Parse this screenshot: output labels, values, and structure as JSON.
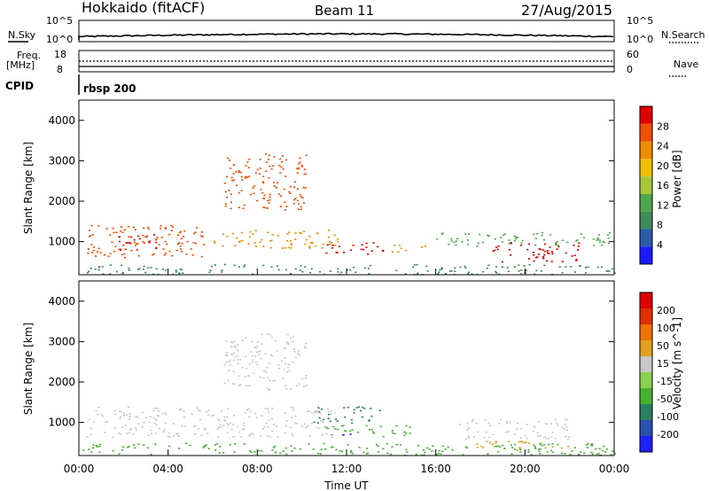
{
  "header": {
    "station": "Hokkaido (fitACF)",
    "beam": "Beam 11",
    "date": "27/Aug/2015"
  },
  "top_panels": {
    "nsky_label": "N.Sky",
    "nsky_ticks": [
      "10^5",
      "10^0"
    ],
    "nsearch_label": "N.Search",
    "nsearch_ticks": [
      "10^5",
      "10^0"
    ],
    "freq_label_line1": "Freq.",
    "freq_label_line2": "[MHz]",
    "freq_ticks": [
      "18",
      "8"
    ],
    "nave_label": "Nave",
    "nave_ticks": [
      "60",
      "0"
    ],
    "cpid_label": "CPID",
    "cpid_value": "rbsp 200"
  },
  "x_axis": {
    "label": "Time UT",
    "ticks": [
      "00:00",
      "04:00",
      "08:00",
      "12:00",
      "16:00",
      "20:00",
      "00:00"
    ]
  },
  "colors": {
    "power_scale": [
      "#1a1aff",
      "#2a5aa8",
      "#3f8c5a",
      "#4fa84f",
      "#a8c83c",
      "#f0c000",
      "#f08c00",
      "#f05000",
      "#e00000"
    ],
    "velocity_scale": [
      "#2020ff",
      "#2850b0",
      "#2a8060",
      "#46b030",
      "#8cd050",
      "#c8c8c8",
      "#e0a020",
      "#f07000",
      "#e03000",
      "#e00000"
    ]
  },
  "chart_data": [
    {
      "type": "heatmap",
      "title": "",
      "xlabel": "Time UT",
      "ylabel": "Slant Range [km]",
      "xlim": [
        0,
        24
      ],
      "ylim": [
        180,
        4500
      ],
      "yticks": [
        "1000",
        "2000",
        "3000",
        "4000"
      ],
      "colorbar": {
        "label": "Power [dB]",
        "ticks": [
          "4",
          "8",
          "12",
          "16",
          "20",
          "24",
          "28"
        ],
        "range": [
          0,
          30
        ]
      },
      "regions": [
        {
          "t0": 0.3,
          "t1": 5.6,
          "r0": 620,
          "r1": 1420,
          "color": "#f05000"
        },
        {
          "t0": 1.5,
          "t1": 3.5,
          "r0": 800,
          "r1": 1200,
          "color": "#e00000"
        },
        {
          "t0": 6.0,
          "t1": 11.8,
          "r0": 850,
          "r1": 1300,
          "color": "#f08c00"
        },
        {
          "t0": 6.5,
          "t1": 10.2,
          "r0": 1800,
          "r1": 3200,
          "color": "#f05000"
        },
        {
          "t0": 11.0,
          "t1": 13.8,
          "r0": 700,
          "r1": 1000,
          "color": "#e00000"
        },
        {
          "t0": 14.0,
          "t1": 15.5,
          "r0": 750,
          "r1": 950,
          "color": "#f08c00"
        },
        {
          "t0": 18.5,
          "t1": 22.5,
          "r0": 500,
          "r1": 1000,
          "color": "#e00000"
        },
        {
          "t0": 16.0,
          "t1": 24.0,
          "r0": 900,
          "r1": 1250,
          "color": "#4fa84f"
        },
        {
          "t0": 0.0,
          "t1": 24.0,
          "r0": 200,
          "r1": 450,
          "color": "#3f8c5a"
        }
      ]
    },
    {
      "type": "heatmap",
      "title": "",
      "xlabel": "Time UT",
      "ylabel": "Slant Range [km]",
      "xlim": [
        0,
        24
      ],
      "ylim": [
        180,
        4500
      ],
      "yticks": [
        "1000",
        "2000",
        "3000",
        "4000"
      ],
      "colorbar": {
        "label": "Velocity [m s^-1]",
        "ticks": [
          "200",
          "100",
          "50",
          "15",
          "-15",
          "-50",
          "-100",
          "-200"
        ],
        "range": [
          -250,
          250
        ]
      },
      "regions": [
        {
          "t0": 0.3,
          "t1": 11.5,
          "r0": 650,
          "r1": 1400,
          "color": "#c8c8c8"
        },
        {
          "t0": 6.5,
          "t1": 10.2,
          "r0": 1800,
          "r1": 3200,
          "color": "#c8c8c8"
        },
        {
          "t0": 10.5,
          "t1": 13.5,
          "r0": 1000,
          "r1": 1400,
          "color": "#2a8060"
        },
        {
          "t0": 11.0,
          "t1": 15.0,
          "r0": 650,
          "r1": 950,
          "color": "#46b030"
        },
        {
          "t0": 11.6,
          "t1": 12.2,
          "r0": 700,
          "r1": 900,
          "color": "#2020ff"
        },
        {
          "t0": 17.0,
          "t1": 22.0,
          "r0": 600,
          "r1": 1100,
          "color": "#c8c8c8"
        },
        {
          "t0": 17.5,
          "t1": 22.0,
          "r0": 300,
          "r1": 550,
          "color": "#e0a020"
        },
        {
          "t0": 0.0,
          "t1": 24.0,
          "r0": 200,
          "r1": 500,
          "color": "#46b030"
        }
      ]
    }
  ]
}
